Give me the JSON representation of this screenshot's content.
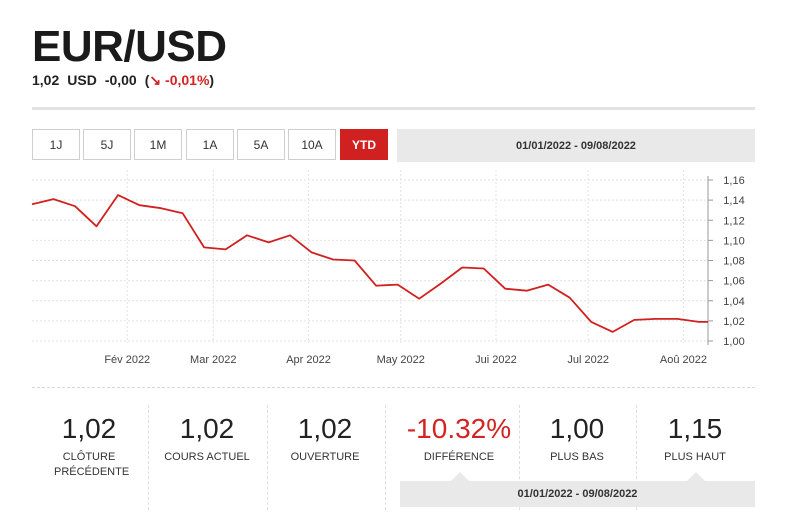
{
  "header": {
    "title": "EUR/USD",
    "price": "1,02",
    "currency": "USD",
    "change": "-0,00",
    "change_pct_open": "(",
    "arrow": "↘",
    "change_pct": "-0,01%",
    "change_pct_close": ")"
  },
  "periods": [
    "1J",
    "5J",
    "1M",
    "1A",
    "5A",
    "10A",
    "YTD"
  ],
  "active_period": "YTD",
  "date_range": "01/01/2022 - 09/08/2022",
  "colors": {
    "line": "#d0201f",
    "accent": "#d0201f",
    "negative": "#d32323"
  },
  "chart_data": {
    "type": "line",
    "ylim": [
      1.0,
      1.16
    ],
    "yticks": [
      "1,16",
      "1,14",
      "1,12",
      "1,10",
      "1,08",
      "1,06",
      "1,04",
      "1,02",
      "1,00"
    ],
    "xticks": [
      "Fév 2022",
      "Mar 2022",
      "Apr 2022",
      "May 2022",
      "Jui 2022",
      "Jul 2022",
      "Aoû 2022"
    ],
    "x": [
      "2022-01-01",
      "2022-01-08",
      "2022-01-15",
      "2022-01-22",
      "2022-01-29",
      "2022-02-05",
      "2022-02-12",
      "2022-02-19",
      "2022-02-26",
      "2022-03-05",
      "2022-03-12",
      "2022-03-19",
      "2022-03-26",
      "2022-04-02",
      "2022-04-09",
      "2022-04-16",
      "2022-04-23",
      "2022-04-30",
      "2022-05-07",
      "2022-05-14",
      "2022-05-21",
      "2022-05-28",
      "2022-06-04",
      "2022-06-11",
      "2022-06-18",
      "2022-06-25",
      "2022-07-02",
      "2022-07-09",
      "2022-07-16",
      "2022-07-23",
      "2022-07-30",
      "2022-08-06",
      "2022-08-09"
    ],
    "values": [
      1.136,
      1.141,
      1.134,
      1.114,
      1.145,
      1.135,
      1.132,
      1.127,
      1.093,
      1.091,
      1.105,
      1.098,
      1.105,
      1.088,
      1.081,
      1.08,
      1.055,
      1.056,
      1.042,
      1.057,
      1.073,
      1.072,
      1.052,
      1.05,
      1.056,
      1.043,
      1.019,
      1.009,
      1.021,
      1.022,
      1.022,
      1.019,
      1.019
    ]
  },
  "stats": [
    {
      "value": "1,02",
      "label": "CLÔTURE PRÉCÉDENTE"
    },
    {
      "value": "1,02",
      "label": "COURS ACTUEL"
    },
    {
      "value": "1,02",
      "label": "OUVERTURE"
    },
    {
      "value": "-10.32%",
      "label": "DIFFÉRENCE"
    },
    {
      "value": "1,00",
      "label": "PLUS BAS"
    },
    {
      "value": "1,15",
      "label": "PLUS HAUT"
    }
  ]
}
